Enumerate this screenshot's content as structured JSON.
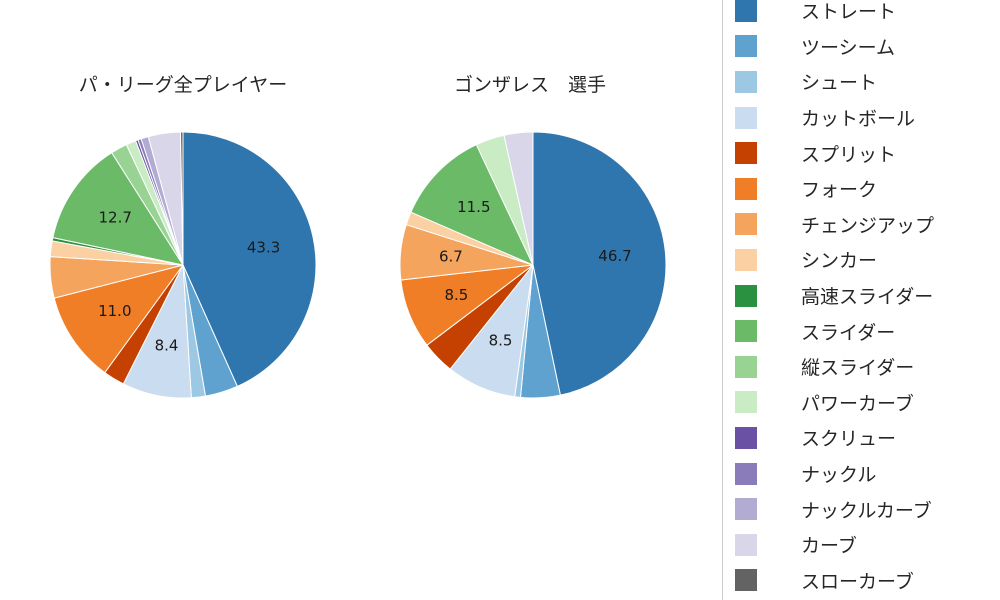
{
  "chart_data": {
    "type": "pie",
    "units": "percent",
    "start_angle": "12-oclock",
    "direction": "clockwise",
    "label_threshold_pct": 6,
    "legend_position": "right",
    "categories": [
      "ストレート",
      "ツーシーム",
      "シュート",
      "カットボール",
      "スプリット",
      "フォーク",
      "チェンジアップ",
      "シンカー",
      "高速スライダー",
      "スライダー",
      "縦スライダー",
      "パワーカーブ",
      "スクリュー",
      "ナックル",
      "ナックルカーブ",
      "カーブ",
      "スローカーブ"
    ],
    "colors": [
      "#2f76ae",
      "#5fa2d0",
      "#9dc8e4",
      "#cadcef",
      "#c44101",
      "#f07e26",
      "#f5a45e",
      "#fbd1a4",
      "#2a9140",
      "#6aba68",
      "#99d394",
      "#c9ecc4",
      "#6a51a3",
      "#8a7cba",
      "#b2abd2",
      "#d9d6e9",
      "#636363"
    ],
    "series": [
      {
        "name": "パ・リーグ全プレイヤー",
        "values": [
          43.3,
          4.0,
          1.7,
          8.4,
          2.6,
          11.0,
          5.0,
          1.9,
          0.4,
          12.7,
          2.0,
          1.2,
          0.3,
          0.4,
          0.9,
          3.9,
          0.3
        ],
        "visible_value_labels": [
          "43.3",
          "8.4",
          "11.0",
          "12.7"
        ]
      },
      {
        "name": "ゴンザレス　選手",
        "values": [
          46.7,
          4.8,
          0.7,
          8.5,
          4.0,
          8.5,
          6.7,
          1.6,
          0.0,
          11.5,
          0.0,
          3.5,
          0.0,
          0.0,
          0.0,
          3.5,
          0.0
        ],
        "visible_value_labels": [
          "46.7",
          "8.5",
          "8.5",
          "6.7",
          "11.5"
        ]
      }
    ]
  },
  "style": {
    "background": "#ffffff",
    "title_color": "#262626",
    "label_color": "#1a1a1a",
    "legend_border_color": "#cccccc"
  }
}
